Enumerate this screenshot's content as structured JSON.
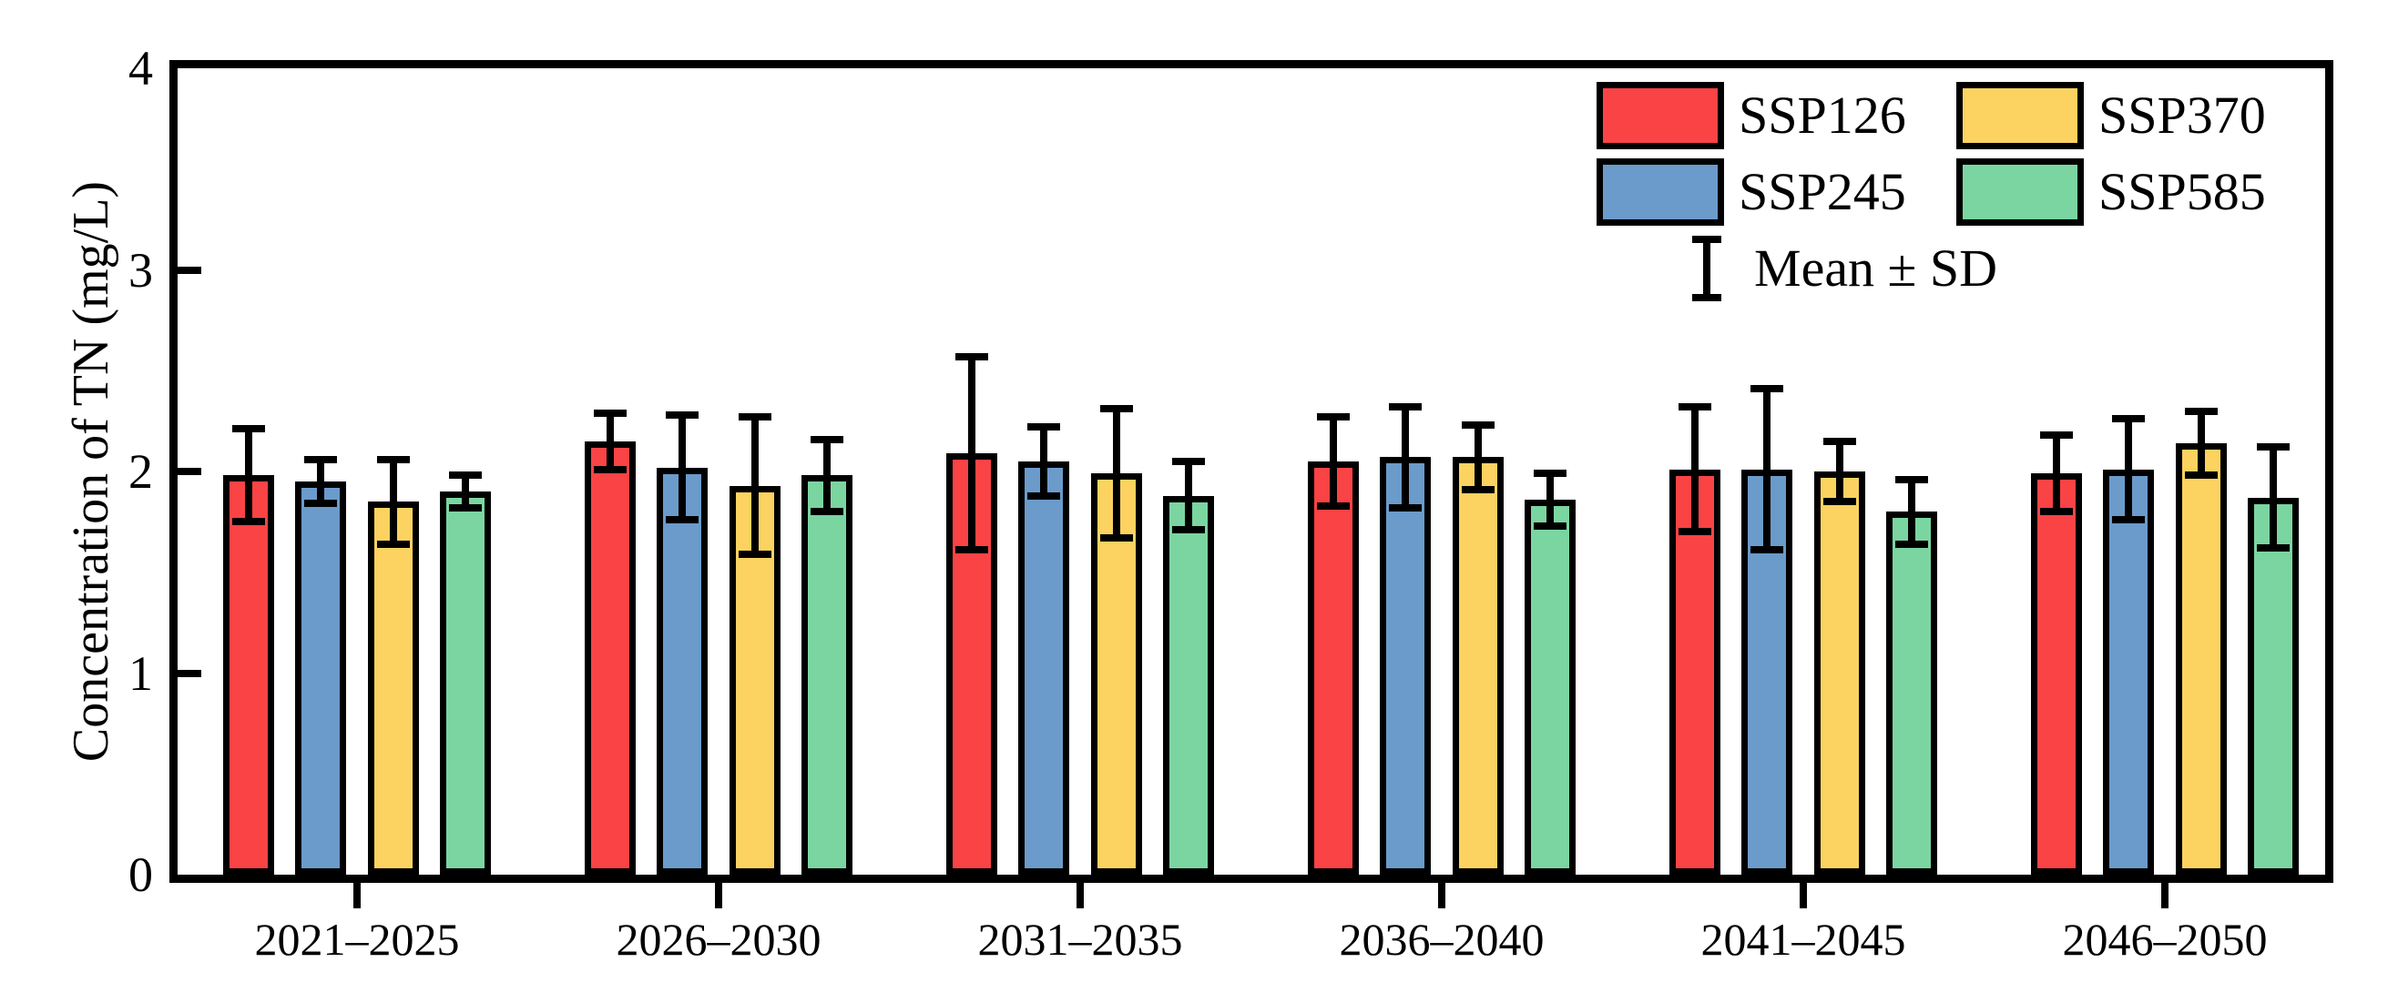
{
  "figure": {
    "background": "#ffffff"
  },
  "chart_data": {
    "type": "bar",
    "title": "",
    "xlabel": "",
    "ylabel": "Concentration of TN (mg/L)",
    "ylim": [
      0,
      4
    ],
    "yticks": [
      0,
      1,
      2,
      3,
      4
    ],
    "grid": false,
    "error_bars": "mean_plus_minus_sd",
    "categories": [
      "2021–2025",
      "2026–2030",
      "2031–2035",
      "2036–2040",
      "2041–2045",
      "2046–2050"
    ],
    "series": [
      {
        "name": "SSP126",
        "color": "#FA4345",
        "values": [
          1.98,
          2.15,
          2.09,
          2.05,
          2.01,
          1.99
        ],
        "sd": [
          0.23,
          0.14,
          0.48,
          0.22,
          0.31,
          0.19
        ]
      },
      {
        "name": "SSP245",
        "color": "#6B9BCB",
        "values": [
          1.95,
          2.02,
          2.05,
          2.07,
          2.01,
          2.01
        ],
        "sd": [
          0.11,
          0.26,
          0.17,
          0.25,
          0.4,
          0.25
        ]
      },
      {
        "name": "SSP370",
        "color": "#FCD360",
        "values": [
          1.85,
          1.93,
          1.99,
          2.07,
          2.0,
          2.14
        ],
        "sd": [
          0.21,
          0.34,
          0.32,
          0.16,
          0.15,
          0.16
        ]
      },
      {
        "name": "SSP585",
        "color": "#7BD5A1",
        "values": [
          1.9,
          1.98,
          1.88,
          1.86,
          1.8,
          1.87
        ],
        "sd": [
          0.08,
          0.18,
          0.17,
          0.13,
          0.16,
          0.25
        ]
      }
    ],
    "legend": {
      "position": "upper-right-inside",
      "errorbar_label": "Mean ± SD"
    },
    "style": {
      "bar_edge_color": "#000000",
      "axis_color": "#000000",
      "background": "#ffffff"
    }
  }
}
